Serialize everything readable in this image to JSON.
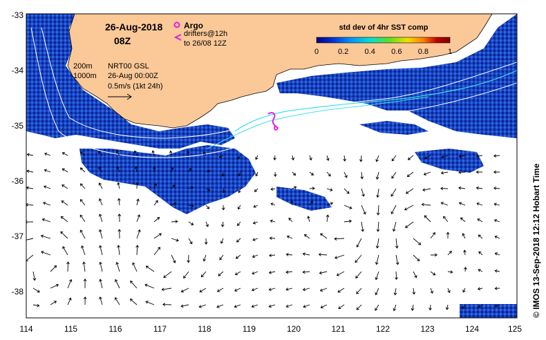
{
  "header": {
    "date": "26-Aug-2018",
    "time": "08Z"
  },
  "legend": {
    "argo": "Argo",
    "drifters_line1": "drifters@12h",
    "drifters_line2": "to 26/08 12Z",
    "argo_color": "#e020e0",
    "drifter_color": "#e020e0"
  },
  "info": {
    "contour_200": "200m",
    "contour_1000": "1000m",
    "altimetry": "NRT00 GSL",
    "altimetry_date": "26-Aug 00:00Z",
    "scale": "0.5m/s (1kt 24h)"
  },
  "colorbar": {
    "title": "std dev of 4hr SST comp",
    "ticks": [
      "0",
      "0.2",
      "0.4",
      "0.6",
      "0.8",
      "1"
    ],
    "colors": [
      "#000080",
      "#0030d0",
      "#0090ff",
      "#00e0d0",
      "#60e020",
      "#f0e000",
      "#ff8000",
      "#c00000",
      "#800000"
    ]
  },
  "axes": {
    "x_ticks": [
      "114",
      "115",
      "116",
      "117",
      "118",
      "119",
      "120",
      "121",
      "122",
      "123",
      "124",
      "125"
    ],
    "y_ticks": [
      "-33",
      "-34",
      "-35",
      "-36",
      "-37",
      "-38"
    ],
    "xlim": [
      114,
      125
    ],
    "ylim": [
      -38.5,
      -33
    ]
  },
  "credit": "© IMOS 13-Sep-2018 12:12 Hobart Time",
  "colors": {
    "land": "#fbc898",
    "sst_dark": "#0a2aa0",
    "sst_mid": "#1c5ad8",
    "contour": "#ffffff",
    "current": "#40e0f0",
    "arrow": "#000000"
  }
}
